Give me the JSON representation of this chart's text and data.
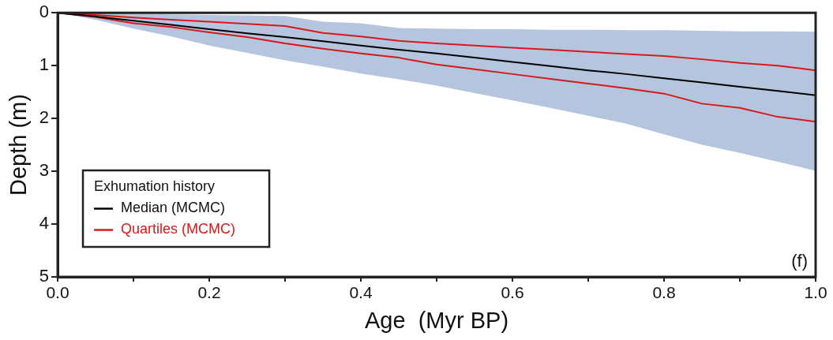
{
  "chart_data": {
    "type": "line",
    "xlabel": "Age  (Myr BP)",
    "ylabel": "Depth (m)",
    "legend_title": "Exhumation history",
    "annotations": [
      "(f)"
    ],
    "x": [
      0,
      0.05,
      0.1,
      0.15,
      0.2,
      0.25,
      0.3,
      0.35,
      0.4,
      0.45,
      0.5,
      0.55,
      0.6,
      0.65,
      0.7,
      0.75,
      0.8,
      0.85,
      0.9,
      0.95,
      1.0
    ],
    "series": [
      {
        "name": "Median (MCMC)",
        "color": "#000000",
        "values": [
          0,
          0.07,
          0.15,
          0.23,
          0.31,
          0.39,
          0.46,
          0.54,
          0.62,
          0.7,
          0.77,
          0.85,
          0.93,
          1.01,
          1.09,
          1.16,
          1.24,
          1.32,
          1.4,
          1.48,
          1.56
        ],
        "lower": [
          0,
          0,
          0.02,
          0.03,
          0.04,
          0.05,
          0.06,
          0.17,
          0.2,
          0.29,
          0.3,
          0.31,
          0.31,
          0.32,
          0.32,
          0.33,
          0.33,
          0.34,
          0.35,
          0.35,
          0.36
        ],
        "upper": [
          0,
          0.13,
          0.3,
          0.45,
          0.62,
          0.76,
          0.9,
          1.02,
          1.15,
          1.26,
          1.38,
          1.52,
          1.66,
          1.8,
          1.95,
          2.1,
          2.3,
          2.5,
          2.65,
          2.82,
          2.99
        ]
      },
      {
        "name": "Quartiles (MCMC)",
        "color": "#d7191c",
        "values": [
          0,
          0.04,
          0.09,
          0.13,
          0.17,
          0.21,
          0.25,
          0.38,
          0.45,
          0.53,
          0.58,
          0.62,
          0.66,
          0.7,
          0.74,
          0.78,
          0.82,
          0.88,
          0.95,
          1.0,
          1.09
        ]
      },
      {
        "color": "#d7191c",
        "values": [
          0,
          0.08,
          0.2,
          0.27,
          0.37,
          0.46,
          0.58,
          0.68,
          0.77,
          0.85,
          0.98,
          1.07,
          1.16,
          1.25,
          1.34,
          1.43,
          1.53,
          1.72,
          1.8,
          1.97,
          2.06
        ]
      }
    ],
    "xlim": [
      0,
      1.0
    ],
    "xticks": [
      {
        "value": 0,
        "label": "0.0"
      },
      {
        "value": 0.1,
        "label": null
      },
      {
        "value": 0.2,
        "label": "0.2"
      },
      {
        "value": 0.3,
        "label": null
      },
      {
        "value": 0.4,
        "label": "0.4"
      },
      {
        "value": 0.5,
        "label": null
      },
      {
        "value": 0.6,
        "label": "0.6"
      },
      {
        "value": 0.7,
        "label": null
      },
      {
        "value": 0.8,
        "label": "0.8"
      },
      {
        "value": 0.9,
        "label": null
      },
      {
        "value": 1.0,
        "label": "1.0"
      }
    ],
    "ylim": [
      5,
      0
    ],
    "yticks": [
      0,
      1,
      2,
      3,
      4,
      5
    ],
    "grid": false,
    "legend": "bottom left",
    "marker": "none",
    "line_style": "solid"
  }
}
